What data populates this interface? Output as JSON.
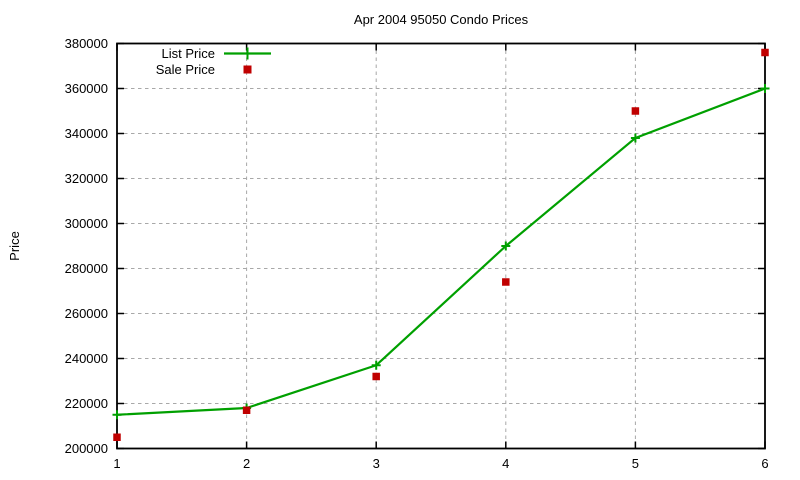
{
  "title": "Apr 2004 95050 Condo Prices",
  "y_axis_label": "Price",
  "legend": {
    "position": "top-left-inside",
    "items": [
      "List Price",
      "Sale Price"
    ]
  },
  "chart_data": {
    "type": "line",
    "title": "Apr 2004 95050 Condo Prices",
    "xlabel": "",
    "ylabel": "Price",
    "x": [
      1,
      2,
      3,
      4,
      5,
      6
    ],
    "series": [
      {
        "name": "List Price",
        "style": "line-with-cross-markers",
        "color": "#00a000",
        "values": [
          215000,
          218000,
          237000,
          290000,
          338000,
          360000
        ]
      },
      {
        "name": "Sale Price",
        "style": "square-points",
        "color": "#c00000",
        "values": [
          205000,
          217000,
          232000,
          274000,
          350000,
          376000
        ]
      }
    ],
    "xlim": [
      1,
      6
    ],
    "ylim": [
      200000,
      380000
    ],
    "x_ticks": [
      1,
      2,
      3,
      4,
      5,
      6
    ],
    "x_tick_labels": [
      "1",
      "2",
      "3",
      "4",
      "5",
      "6"
    ],
    "y_ticks": [
      200000,
      220000,
      240000,
      260000,
      280000,
      300000,
      320000,
      340000,
      360000,
      380000
    ],
    "y_tick_labels": [
      "200000",
      "220000",
      "240000",
      "260000",
      "280000",
      "300000",
      "320000",
      "340000",
      "360000",
      "380000"
    ],
    "grid": true,
    "grid_color": "#a8a8a8",
    "axis_color": "#000000",
    "background_color": "#ffffff",
    "legend_position": "top-left-inside"
  }
}
